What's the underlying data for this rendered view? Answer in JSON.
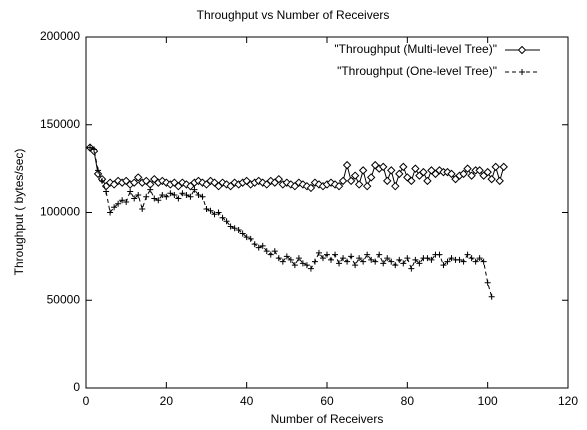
{
  "chart_data": {
    "type": "line",
    "title": "Throughput vs Number of Receivers",
    "xlabel": "Number of Receivers",
    "ylabel": "Throughput ( bytes/sec)",
    "xlim": [
      0,
      120
    ],
    "xticks": [
      0,
      20,
      40,
      60,
      80,
      100,
      120
    ],
    "ylim": [
      0,
      200000
    ],
    "yticks": [
      0,
      50000,
      100000,
      150000,
      200000
    ],
    "legend": "upper-right",
    "series": [
      {
        "name": "\"Throughput (Multi-level Tree)\"",
        "color": "#000000",
        "marker": "diamond",
        "dash": "solid",
        "x": [
          1,
          2,
          3,
          4,
          5,
          6,
          7,
          8,
          9,
          10,
          11,
          12,
          13,
          14,
          15,
          16,
          17,
          18,
          19,
          20,
          21,
          22,
          23,
          24,
          25,
          26,
          27,
          28,
          29,
          30,
          31,
          32,
          33,
          34,
          35,
          36,
          37,
          38,
          39,
          40,
          41,
          42,
          43,
          44,
          45,
          46,
          47,
          48,
          49,
          50,
          51,
          52,
          53,
          54,
          55,
          56,
          57,
          58,
          59,
          60,
          61,
          62,
          63,
          64,
          65,
          66,
          67,
          68,
          69,
          70,
          71,
          72,
          73,
          74,
          75,
          76,
          77,
          78,
          79,
          80,
          81,
          82,
          83,
          84,
          85,
          86,
          87,
          88,
          89,
          90,
          91,
          92,
          93,
          94,
          95,
          96,
          97,
          98,
          99,
          100,
          101,
          102,
          103,
          104
        ],
        "values": [
          137000,
          135000,
          122000,
          119000,
          115000,
          117000,
          116000,
          118000,
          117000,
          118000,
          116000,
          117000,
          120000,
          117000,
          118000,
          116000,
          119000,
          117000,
          118000,
          117000,
          116000,
          117000,
          115000,
          117000,
          116000,
          115000,
          117000,
          118000,
          117000,
          116000,
          118000,
          117000,
          115000,
          117000,
          116000,
          115000,
          117000,
          116000,
          117000,
          118000,
          116000,
          117000,
          118000,
          117000,
          116000,
          118000,
          117000,
          119000,
          116000,
          117000,
          116000,
          115000,
          117000,
          116000,
          115000,
          114000,
          117000,
          116000,
          115000,
          116000,
          117000,
          116000,
          115000,
          118000,
          127000,
          118000,
          121000,
          116000,
          124000,
          115000,
          120000,
          127000,
          125000,
          126000,
          118000,
          124000,
          115000,
          122000,
          126000,
          120000,
          118000,
          125000,
          121000,
          123000,
          118000,
          124000,
          122000,
          124000,
          123000,
          123000,
          122000,
          119000,
          121000,
          122000,
          125000,
          121000,
          124000,
          124000,
          121000,
          123000,
          119000,
          126000,
          118000,
          126000
        ]
      },
      {
        "name": "\"Throughput (One-level Tree)\"",
        "color": "#000000",
        "marker": "plus",
        "dash": "dashed",
        "x": [
          1,
          2,
          3,
          4,
          5,
          6,
          7,
          8,
          9,
          10,
          11,
          12,
          13,
          14,
          15,
          16,
          17,
          18,
          19,
          20,
          21,
          22,
          23,
          24,
          25,
          26,
          27,
          28,
          29,
          30,
          31,
          32,
          33,
          34,
          35,
          36,
          37,
          38,
          39,
          40,
          41,
          42,
          43,
          44,
          45,
          46,
          47,
          48,
          49,
          50,
          51,
          52,
          53,
          54,
          55,
          56,
          57,
          58,
          59,
          60,
          61,
          62,
          63,
          64,
          65,
          66,
          67,
          68,
          69,
          70,
          71,
          72,
          73,
          74,
          75,
          76,
          77,
          78,
          79,
          80,
          81,
          82,
          83,
          84,
          85,
          86,
          87,
          88,
          89,
          90,
          91,
          92,
          93,
          94,
          95,
          96,
          97,
          98,
          99,
          100,
          101
        ],
        "values": [
          137000,
          136000,
          124000,
          118000,
          112000,
          100000,
          103000,
          105000,
          107000,
          106000,
          112000,
          108000,
          110000,
          102000,
          109000,
          113000,
          108000,
          107000,
          110000,
          109000,
          111000,
          110000,
          108000,
          111000,
          110000,
          109000,
          113000,
          110000,
          109000,
          102000,
          101000,
          99000,
          100000,
          97000,
          95000,
          92000,
          91000,
          90000,
          88000,
          86000,
          85000,
          82000,
          80000,
          81000,
          78000,
          76000,
          78000,
          74000,
          72000,
          75000,
          73000,
          70000,
          74000,
          71000,
          70000,
          68000,
          72000,
          77000,
          74000,
          76000,
          73000,
          76000,
          71000,
          74000,
          72000,
          75000,
          70000,
          74000,
          72000,
          76000,
          73000,
          72000,
          76000,
          71000,
          74000,
          72000,
          70000,
          73000,
          71000,
          74000,
          68000,
          73000,
          71000,
          74000,
          74000,
          73000,
          76000,
          76000,
          70000,
          72000,
          74000,
          73000,
          73000,
          72000,
          76000,
          74000,
          72000,
          74000,
          72000,
          60000,
          52000
        ]
      }
    ]
  }
}
